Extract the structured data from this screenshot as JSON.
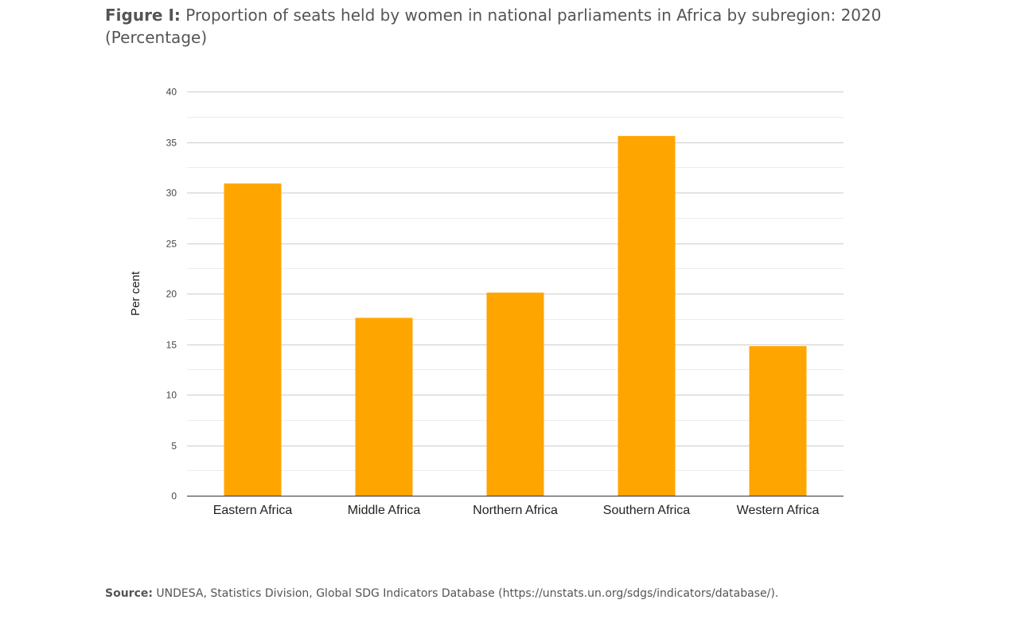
{
  "header": {
    "label": "Figure I:",
    "title": "Proportion of seats held by women in national parliaments in Africa by subregion: 2020 (Percentage)"
  },
  "footer": {
    "source_label": "Source:",
    "source_text": "UNDESA, Statistics Division, Global SDG Indicators Database (https://unstats.un.org/sdgs/indicators/database/)."
  },
  "chart_data": {
    "type": "bar",
    "title": "",
    "xlabel": "",
    "ylabel": "Per cent",
    "categories": [
      "Eastern Africa",
      "Middle Africa",
      "Northern Africa",
      "Southern Africa",
      "Western Africa"
    ],
    "values": [
      30.9,
      17.6,
      20.1,
      35.6,
      14.8
    ],
    "ylim": [
      0,
      40
    ],
    "yticks": [
      0,
      5,
      10,
      15,
      20,
      25,
      30,
      35,
      40
    ],
    "grid": true,
    "legend": "none",
    "bar_color": "#ffa500",
    "grid_color": "#cccccc",
    "minor_grid_color": "#ececec",
    "axis_color": "#333333",
    "tick_label_color": "#444444"
  }
}
